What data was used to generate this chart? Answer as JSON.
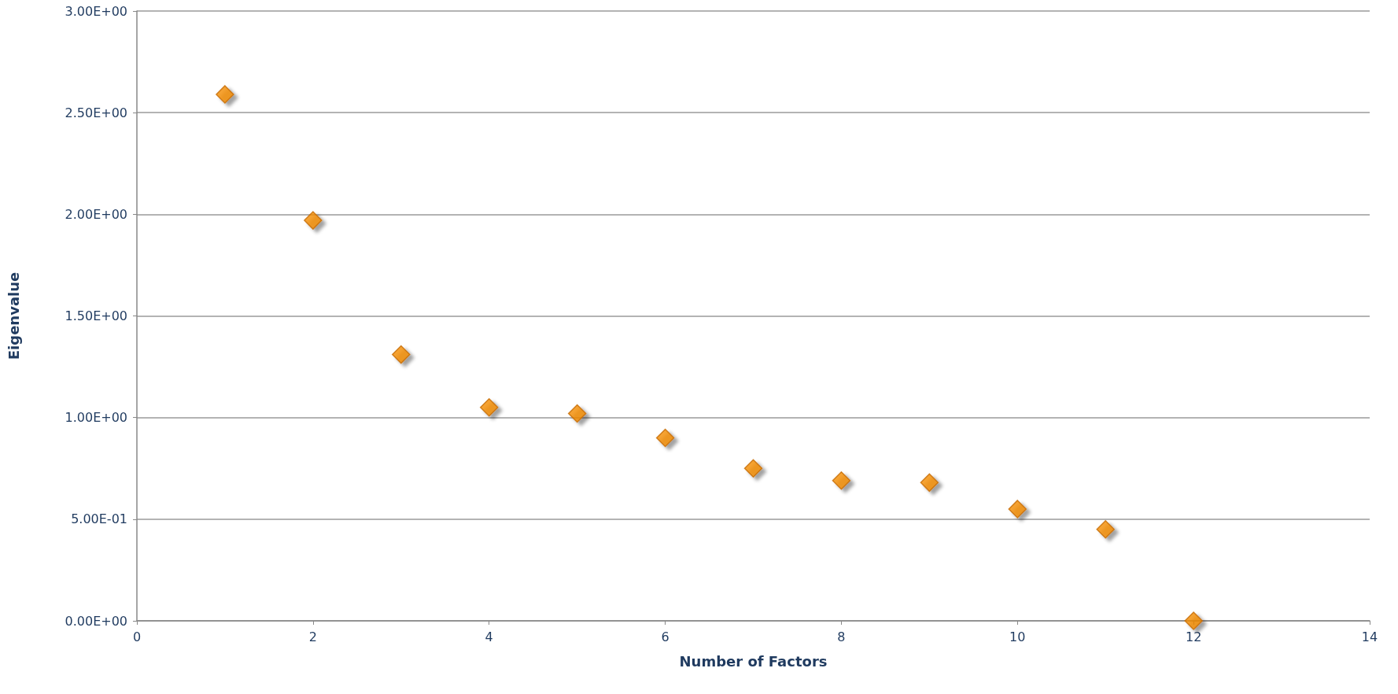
{
  "chart_data": {
    "type": "scatter",
    "xlabel": "Number of Factors",
    "ylabel": "Eigenvalue",
    "x": [
      1,
      2,
      3,
      4,
      5,
      6,
      7,
      8,
      9,
      10,
      11,
      12
    ],
    "series": [
      {
        "color": "#f28c00",
        "values": [
          2.59,
          1.97,
          1.31,
          1.05,
          1.02,
          0.9,
          0.75,
          0.69,
          0.68,
          0.55,
          0.45,
          0.0
        ]
      }
    ],
    "xlim": [
      0,
      14
    ],
    "xticks": [
      0,
      2,
      4,
      6,
      8,
      10,
      12,
      14
    ],
    "ylim": [
      0,
      3
    ],
    "yticks": [
      {
        "value": 0,
        "label": "0.00E+00"
      },
      {
        "value": 0.5,
        "label": "5.00E-01"
      },
      {
        "value": 1,
        "label": "1.00E+00"
      },
      {
        "value": 1.5,
        "label": "1.50E+00"
      },
      {
        "value": 2,
        "label": "2.00E+00"
      },
      {
        "value": 2.5,
        "label": "2.50E+00"
      },
      {
        "value": 3,
        "label": "3.00E+00"
      }
    ],
    "grid": "y",
    "marker": "diamond"
  }
}
